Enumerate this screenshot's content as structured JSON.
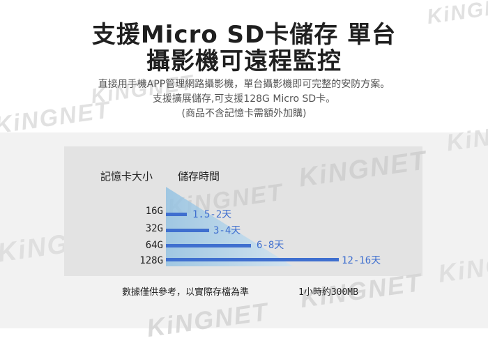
{
  "title": {
    "line1": "支援Micro SD卡儲存 單台",
    "line2": "攝影機可遠程監控"
  },
  "subtitle": {
    "line1": "直接用手機APP管理網路攝影機，單台攝影機即可完整的安防方案。",
    "line2": "支援擴展儲存,可支援128G  Micro  SD卡。",
    "line3": "(商品不含記憶卡需額外加購)"
  },
  "table": {
    "col_card": "記憶卡大小",
    "col_time": "儲存時間",
    "rows": [
      {
        "capacity": "16G",
        "range": "1.5-2天"
      },
      {
        "capacity": "32G",
        "range": "3-4天"
      },
      {
        "capacity": "64G",
        "range": "6-8天"
      },
      {
        "capacity": "128G",
        "range": "12-16天"
      }
    ]
  },
  "footer": {
    "note": "數據僅供參考，以實際存檔為準",
    "rate": "1小時約300MB"
  },
  "watermark": {
    "text": "KingNet",
    "text_top": "KiNGNET"
  },
  "colors": {
    "accent": "#3f6fcf",
    "triangle": "#a9cde6"
  }
}
